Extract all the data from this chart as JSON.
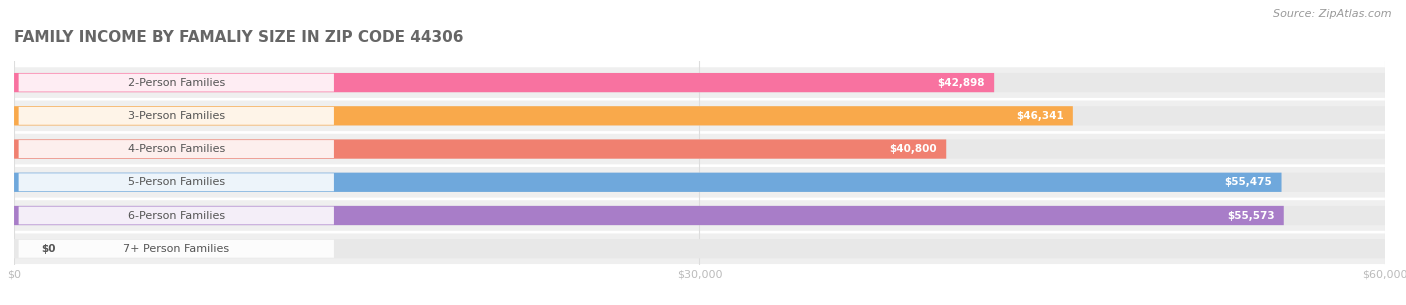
{
  "title": "FAMILY INCOME BY FAMALIY SIZE IN ZIP CODE 44306",
  "source": "Source: ZipAtlas.com",
  "categories": [
    "2-Person Families",
    "3-Person Families",
    "4-Person Families",
    "5-Person Families",
    "6-Person Families",
    "7+ Person Families"
  ],
  "values": [
    42898,
    46341,
    40800,
    55475,
    55573,
    0
  ],
  "bar_colors": [
    "#F872A0",
    "#F9A94B",
    "#F08070",
    "#6FA8DC",
    "#A87DC8",
    "#5EC8C8"
  ],
  "row_bg_color": "#EFEFEF",
  "track_color": "#E8E8E8",
  "xlim": [
    0,
    60000
  ],
  "xticks": [
    0,
    30000,
    60000
  ],
  "xtick_labels": [
    "$0",
    "$30,000",
    "$60,000"
  ],
  "title_fontsize": 11,
  "label_fontsize": 8,
  "value_fontsize": 7.5,
  "source_fontsize": 8,
  "background_color": "#FFFFFF",
  "title_color": "#666666",
  "label_color": "#555555",
  "value_color": "#FFFFFF",
  "source_color": "#999999",
  "tick_color": "#BBBBBB",
  "grid_color": "#DDDDDD"
}
